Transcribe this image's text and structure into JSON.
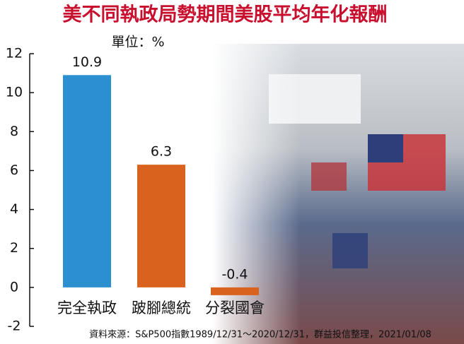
{
  "chart_data": {
    "type": "bar",
    "title": "美不同執政局勢期間美股平均年化報酬",
    "unit_label": "單位：%",
    "source": "資料來源：S&P500指數1989/12/31～2020/12/31，群益投信整理，2021/01/08",
    "categories": [
      "完全執政",
      "跛腳總統",
      "分裂國會"
    ],
    "values": [
      10.9,
      6.3,
      -0.4
    ],
    "colors": [
      "#2c8fd0",
      "#d8621e",
      "#d8621e"
    ],
    "ylim": [
      -2,
      12
    ],
    "yticks": [
      -2,
      0,
      2,
      4,
      6,
      8,
      10,
      12
    ]
  }
}
